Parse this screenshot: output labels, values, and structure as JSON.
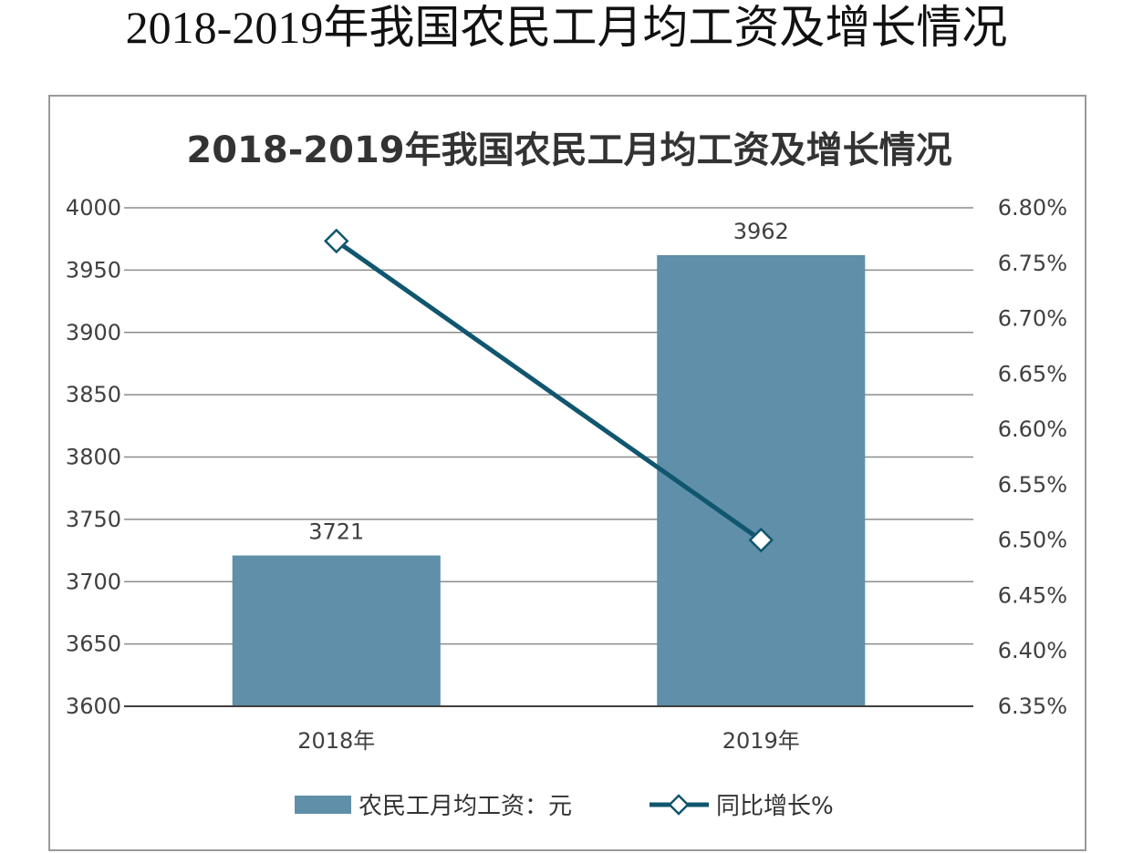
{
  "page": {
    "heading": "2018-2019年我国农民工月均工资及增长情况"
  },
  "chart_data": {
    "type": "bar",
    "title": "2018-2019年我国农民工月均工资及增长情况",
    "categories": [
      "2018年",
      "2019年"
    ],
    "series": [
      {
        "name": "农民工月均工资：元",
        "kind": "bar",
        "axis": "left",
        "values": [
          3721,
          3962
        ],
        "data_labels": [
          "3721",
          "3962"
        ],
        "color": "#5f8fa9"
      },
      {
        "name": "同比增长%",
        "kind": "line",
        "axis": "right",
        "marker": "diamond",
        "values": [
          6.77,
          6.5
        ],
        "color": "#10566e"
      }
    ],
    "y_left": {
      "ylim": [
        3600,
        4000
      ],
      "ticks": [
        "4000",
        "3950",
        "3900",
        "3850",
        "3800",
        "3750",
        "3700",
        "3650",
        "3600"
      ]
    },
    "y_right": {
      "ylim": [
        6.35,
        6.8
      ],
      "ticks": [
        "6.80%",
        "6.75%",
        "6.70%",
        "6.65%",
        "6.60%",
        "6.55%",
        "6.50%",
        "6.45%",
        "6.40%",
        "6.35%"
      ]
    },
    "grid": true,
    "legend_position": "bottom"
  }
}
